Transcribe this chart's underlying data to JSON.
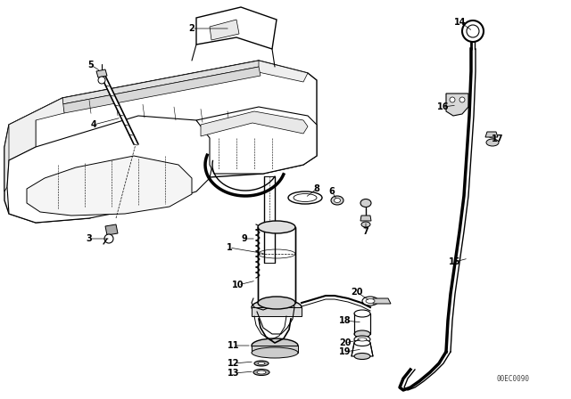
{
  "background_color": "#ffffff",
  "line_color": "#000000",
  "watermark": "00EC0090",
  "figsize": [
    6.4,
    4.48
  ],
  "dpi": 100
}
